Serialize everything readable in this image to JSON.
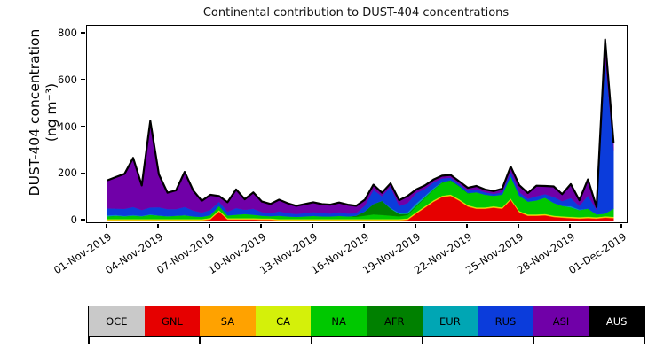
{
  "chart_data": {
    "type": "area",
    "stacked": true,
    "title": "Continental contribution to DUST-404 concentrations",
    "ylabel": "DUST-404 concentration",
    "ylabel_units": "(ng m⁻³)",
    "xlabel": "",
    "ylim": [
      0,
      840
    ],
    "y_ticks": [
      0,
      200,
      400,
      600,
      800
    ],
    "x_ticks": [
      {
        "t": 0,
        "label": "01-Nov-2019"
      },
      {
        "t": 3,
        "label": "04-Nov-2019"
      },
      {
        "t": 6,
        "label": "07-Nov-2019"
      },
      {
        "t": 9,
        "label": "10-Nov-2019"
      },
      {
        "t": 12,
        "label": "13-Nov-2019"
      },
      {
        "t": 15,
        "label": "16-Nov-2019"
      },
      {
        "t": 18,
        "label": "19-Nov-2019"
      },
      {
        "t": 21,
        "label": "22-Nov-2019"
      },
      {
        "t": 24,
        "label": "25-Nov-2019"
      },
      {
        "t": 27,
        "label": "28-Nov-2019"
      },
      {
        "t": 30,
        "label": "01-Dec-2019"
      }
    ],
    "x_days": [
      0,
      0.5,
      1,
      1.5,
      2,
      2.5,
      3,
      3.5,
      4,
      4.5,
      5,
      5.5,
      6,
      6.5,
      7,
      7.5,
      8,
      8.5,
      9,
      9.5,
      10,
      10.5,
      11,
      11.5,
      12,
      12.5,
      13,
      13.5,
      14,
      14.5,
      15,
      15.5,
      16,
      16.5,
      17,
      17.5,
      18,
      18.5,
      19,
      19.5,
      20,
      20.5,
      21,
      21.5,
      22,
      22.5,
      23,
      23.5,
      24,
      24.5,
      25,
      25.5,
      26,
      26.5,
      27,
      27.5,
      28,
      28.5,
      29,
      29.5
    ],
    "x_units": "days since 01-Nov-2019",
    "series": [
      {
        "name": "OCE",
        "color": "#c9c9c9",
        "label_color": "#000000",
        "values": [
          0,
          0,
          0,
          0,
          0,
          0,
          0,
          0,
          0,
          0,
          0,
          0,
          0,
          0,
          0,
          0,
          0,
          0,
          0,
          0,
          0,
          0,
          0,
          0,
          0,
          0,
          0,
          0,
          0,
          0,
          0,
          0,
          0,
          0,
          0,
          0,
          0,
          0,
          0,
          0,
          0,
          0,
          0,
          0,
          0,
          0,
          0,
          0,
          0,
          0,
          0,
          0,
          0,
          0,
          0,
          0,
          0,
          0,
          0,
          0
        ]
      },
      {
        "name": "GNL",
        "color": "#e60000",
        "label_color": "#000000",
        "values": [
          0,
          0,
          0,
          0,
          0,
          0,
          0,
          0,
          0,
          0,
          0,
          0,
          5,
          38,
          4,
          4,
          4,
          4,
          3,
          3,
          0,
          0,
          0,
          0,
          0,
          0,
          0,
          0,
          0,
          0,
          0,
          0,
          0,
          0,
          0,
          3,
          30,
          55,
          80,
          100,
          105,
          85,
          60,
          50,
          50,
          55,
          50,
          88,
          35,
          20,
          20,
          22,
          15,
          12,
          10,
          8,
          10,
          8,
          12,
          10
        ]
      },
      {
        "name": "SA",
        "color": "#ffa200",
        "label_color": "#000000",
        "values": [
          3,
          3,
          3,
          3,
          3,
          3,
          3,
          3,
          3,
          3,
          3,
          3,
          3,
          3,
          3,
          3,
          3,
          3,
          3,
          3,
          3,
          3,
          3,
          3,
          3,
          3,
          3,
          3,
          3,
          3,
          3,
          3,
          3,
          3,
          3,
          3,
          3,
          3,
          3,
          3,
          3,
          3,
          3,
          3,
          3,
          3,
          3,
          3,
          3,
          3,
          3,
          3,
          3,
          3,
          3,
          3,
          3,
          3,
          3,
          3
        ]
      },
      {
        "name": "CA",
        "color": "#d4f00a",
        "label_color": "#000000",
        "values": [
          3,
          3,
          3,
          3,
          3,
          3,
          3,
          3,
          3,
          3,
          3,
          3,
          3,
          3,
          3,
          3,
          3,
          3,
          3,
          3,
          3,
          3,
          3,
          3,
          3,
          3,
          3,
          3,
          3,
          3,
          3,
          3,
          3,
          3,
          3,
          3,
          3,
          3,
          3,
          3,
          3,
          3,
          3,
          3,
          3,
          3,
          3,
          3,
          3,
          3,
          3,
          3,
          3,
          3,
          3,
          3,
          3,
          3,
          3,
          3
        ]
      },
      {
        "name": "NA",
        "color": "#00c800",
        "label_color": "#000000",
        "values": [
          12,
          14,
          12,
          15,
          12,
          18,
          15,
          12,
          14,
          16,
          12,
          10,
          12,
          18,
          12,
          15,
          18,
          15,
          12,
          10,
          15,
          12,
          10,
          12,
          14,
          12,
          12,
          14,
          12,
          10,
          15,
          20,
          18,
          15,
          12,
          15,
          25,
          35,
          45,
          55,
          60,
          55,
          50,
          65,
          55,
          45,
          55,
          95,
          65,
          55,
          60,
          70,
          55,
          45,
          40,
          30,
          35,
          12,
          12,
          35
        ]
      },
      {
        "name": "AFR",
        "color": "#008000",
        "label_color": "#000000",
        "values": [
          0,
          0,
          0,
          0,
          0,
          0,
          0,
          0,
          0,
          0,
          0,
          0,
          0,
          0,
          0,
          0,
          0,
          0,
          0,
          0,
          0,
          0,
          0,
          0,
          0,
          0,
          0,
          0,
          0,
          5,
          18,
          45,
          60,
          30,
          10,
          5,
          4,
          3,
          3,
          2,
          2,
          2,
          2,
          0,
          0,
          0,
          0,
          0,
          0,
          0,
          0,
          0,
          0,
          0,
          0,
          0,
          0,
          0,
          0,
          0
        ]
      },
      {
        "name": "EUR",
        "color": "#00a6b4",
        "label_color": "#000000",
        "values": [
          4,
          3,
          2,
          2,
          2,
          2,
          1,
          1,
          1,
          1,
          0,
          0,
          0,
          0,
          0,
          0,
          0,
          0,
          0,
          0,
          0,
          0,
          0,
          0,
          0,
          0,
          0,
          0,
          0,
          0,
          0,
          0,
          0,
          3,
          4,
          6,
          8,
          6,
          4,
          2,
          0,
          0,
          0,
          0,
          0,
          0,
          0,
          0,
          0,
          0,
          0,
          0,
          0,
          0,
          5,
          3,
          0,
          0,
          0,
          0
        ]
      },
      {
        "name": "RUS",
        "color": "#0b3cdb",
        "label_color": "#000000",
        "values": [
          30,
          28,
          30,
          35,
          25,
          30,
          35,
          30,
          28,
          35,
          25,
          18,
          22,
          18,
          16,
          28,
          18,
          25,
          15,
          12,
          18,
          14,
          12,
          14,
          16,
          14,
          12,
          15,
          12,
          10,
          25,
          60,
          20,
          90,
          30,
          40,
          45,
          30,
          25,
          15,
          10,
          8,
          10,
          12,
          10,
          8,
          10,
          20,
          15,
          12,
          18,
          15,
          25,
          20,
          35,
          15,
          55,
          20,
          665,
          250
        ]
      },
      {
        "name": "ASI",
        "color": "#7000a8",
        "label_color": "#000000",
        "values": [
          120,
          135,
          150,
          210,
          105,
          370,
          140,
          70,
          80,
          150,
          85,
          50,
          65,
          25,
          40,
          80,
          45,
          70,
          45,
          40,
          50,
          42,
          35,
          38,
          42,
          38,
          38,
          42,
          38,
          32,
          25,
          22,
          15,
          15,
          25,
          30,
          15,
          15,
          12,
          12,
          12,
          12,
          12,
          15,
          12,
          12,
          15,
          22,
          30,
          25,
          45,
          35,
          45,
          30,
          60,
          25,
          70,
          12,
          80,
          30
        ]
      },
      {
        "name": "AUS",
        "color": "#000000",
        "label_color": "#ffffff",
        "values": [
          0,
          0,
          0,
          0,
          0,
          0,
          0,
          0,
          0,
          0,
          0,
          0,
          0,
          0,
          0,
          0,
          0,
          0,
          0,
          0,
          0,
          0,
          0,
          0,
          0,
          0,
          0,
          0,
          0,
          0,
          0,
          0,
          0,
          0,
          0,
          0,
          0,
          0,
          0,
          0,
          0,
          0,
          0,
          0,
          0,
          0,
          0,
          0,
          0,
          0,
          0,
          0,
          0,
          0,
          0,
          0,
          0,
          0,
          0,
          0
        ]
      }
    ],
    "outline_color": "#000000",
    "legend_position": "bottom strip",
    "grid": false
  }
}
